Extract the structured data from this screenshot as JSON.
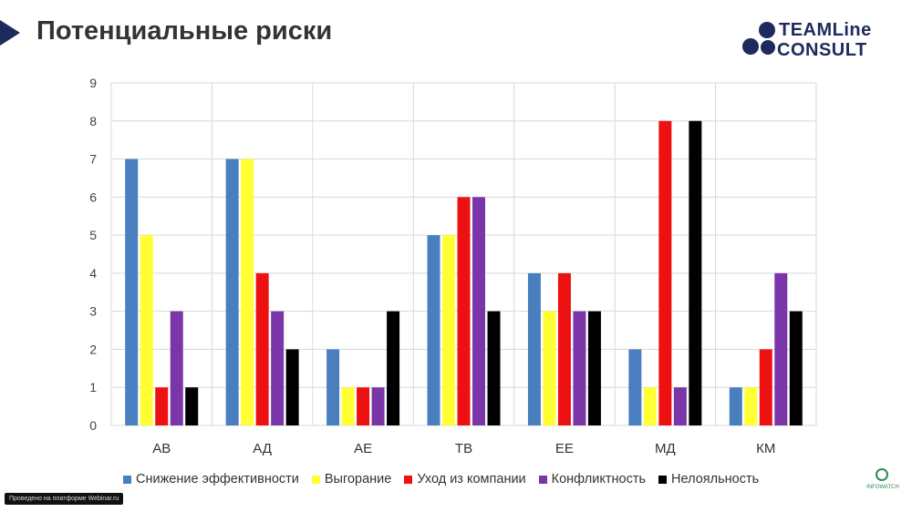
{
  "slide": {
    "title": "Потенциальные риски",
    "logo": {
      "line1": "TEAMLine",
      "line2": "CONSULT"
    },
    "footer_note": "Проведено на платформе Webinar.ru",
    "bottom_logo_text": "INFOWATCH"
  },
  "colors": {
    "brand": "#1e2a5e",
    "series": [
      "#4a7fbf",
      "#ffff33",
      "#ee1111",
      "#7a35a8",
      "#000000"
    ]
  },
  "chart_data": {
    "type": "bar",
    "categories": [
      "АВ",
      "АД",
      "АЕ",
      "ТВ",
      "ЕЕ",
      "МД",
      "КМ"
    ],
    "series": [
      {
        "name": "Снижение эффективности",
        "values": [
          7,
          7,
          2,
          5,
          4,
          2,
          1
        ]
      },
      {
        "name": "Выгорание",
        "values": [
          5,
          7,
          1,
          5,
          3,
          1,
          1
        ]
      },
      {
        "name": "Уход из компании",
        "values": [
          1,
          4,
          1,
          6,
          4,
          8,
          2
        ]
      },
      {
        "name": "Конфликтность",
        "values": [
          3,
          3,
          1,
          6,
          3,
          1,
          4
        ]
      },
      {
        "name": "Нелояльность",
        "values": [
          1,
          2,
          3,
          3,
          3,
          8,
          3
        ]
      }
    ],
    "ylim": [
      0,
      9
    ],
    "yticks": [
      "0",
      "1",
      "2",
      "3",
      "4",
      "5",
      "6",
      "7",
      "8",
      "9"
    ],
    "grid": true,
    "legend_position": "bottom"
  }
}
